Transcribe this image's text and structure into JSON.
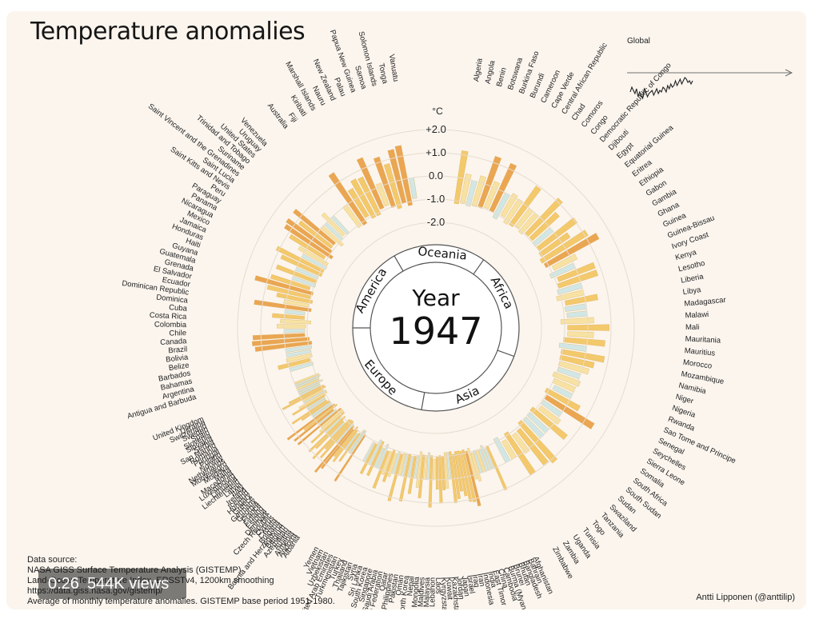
{
  "title": "Temperature anomalies",
  "video": {
    "time": "0:26",
    "views": "544K views"
  },
  "source": {
    "label": "Data source:",
    "lines": [
      "NASA GISS Surface Temperature Analysis (GISTEMP)",
      "Land-Ocean Temperature Index, ERSSTv4, 1200km smoothing",
      "https://data.giss.nasa.gov/gistemp/",
      "Average of monthly temperature anomalies. GISTEMP base period 1951-1980."
    ]
  },
  "credit": "Antti Lipponen (@anttilip)",
  "colors": {
    "background": "#fbf5ee",
    "warm": "#f2c45a",
    "cool": "#c8e6ea",
    "hot": "#e89a3c"
  },
  "chart_data": {
    "type": "bar",
    "layout": "radial",
    "year_label": "Year",
    "year": "1947",
    "unit": "°C",
    "scale_ticks": [
      "+2.0",
      "+1.0",
      "0.0",
      "-1.0",
      "-2.0"
    ],
    "scale_values": [
      2.0,
      1.0,
      0.0,
      -1.0,
      -2.0
    ],
    "range": [
      -2.0,
      2.0
    ],
    "regions": [
      {
        "name": "Africa",
        "countries": [
          "Algeria",
          "Angola",
          "Benin",
          "Botswana",
          "Burkina Faso",
          "Burundi",
          "Cameroon",
          "Cape Verde",
          "Central African Republic",
          "Chad",
          "Comoros",
          "Congo",
          "Democratic Republic of Congo",
          "Djibouti",
          "Egypt",
          "Equatorial Guinea",
          "Eritrea",
          "Ethiopia",
          "Gabon",
          "Gambia",
          "Ghana",
          "Guinea",
          "Guinea-Bissau",
          "Ivory Coast",
          "Kenya",
          "Lesotho",
          "Liberia",
          "Libya",
          "Madagascar",
          "Malawi",
          "Mali",
          "Mauritania",
          "Mauritius",
          "Morocco",
          "Mozambique",
          "Namibia",
          "Niger",
          "Nigeria",
          "Rwanda",
          "Sao Tome and Principe",
          "Senegal",
          "Seychelles",
          "Sierra Leone",
          "Somalia",
          "South Africa",
          "South Sudan",
          "Sudan",
          "Swaziland",
          "Tanzania",
          "Togo",
          "Tunisia",
          "Uganda",
          "Zambia",
          "Zimbabwe"
        ]
      },
      {
        "name": "Asia",
        "countries": [
          "Afghanistan",
          "Bahrain",
          "Bangladesh",
          "Bhutan",
          "Brunei",
          "Burma (Myanmar)",
          "Cambodia",
          "China",
          "East Timor",
          "India",
          "Indonesia",
          "Iran",
          "Iraq",
          "Israel",
          "Japan",
          "Jordan",
          "Kazakhstan",
          "Kuwait",
          "Kyrgyzstan",
          "Laos",
          "Lebanon",
          "Malaysia",
          "Maldives",
          "Mongolia",
          "Nepal",
          "North Korea",
          "Oman",
          "Pakistan",
          "Philippines",
          "Qatar",
          "Russian Federation",
          "Saudi Arabia",
          "Singapore",
          "South Korea",
          "Sri Lanka",
          "Syria",
          "Tajikistan",
          "Thailand",
          "Turkey",
          "Turkmenistan",
          "United Arab Emirates",
          "Uzbekistan",
          "Vietnam",
          "Yemen"
        ]
      },
      {
        "name": "Europe",
        "countries": [
          "Albania",
          "Andorra",
          "Armenia",
          "Austria",
          "Azerbaijan",
          "Belgium",
          "Bosnia and Herzegovina",
          "Bulgaria",
          "Croatia",
          "Cyprus",
          "Czech Republic",
          "Denmark",
          "Estonia",
          "Finland",
          "France",
          "Georgia",
          "Germany",
          "Greece",
          "Hungary",
          "Iceland",
          "Ireland",
          "Italy",
          "Latvia",
          "Liechtenstein",
          "Lithuania",
          "Luxembourg",
          "Macedonia",
          "Malta",
          "Moldova",
          "Montenegro",
          "Netherlands",
          "Norway",
          "Poland",
          "Portugal",
          "Romania",
          "San Marino",
          "Serbia",
          "Slovakia",
          "Slovenia",
          "Spain",
          "Sweden",
          "Switzerland",
          "Ukraine",
          "United Kingdom"
        ]
      },
      {
        "name": "America",
        "countries": [
          "Antigua and Barbuda",
          "Argentina",
          "Bahamas",
          "Barbados",
          "Belize",
          "Bolivia",
          "Brazil",
          "Canada",
          "Chile",
          "Colombia",
          "Costa Rica",
          "Cuba",
          "Dominica",
          "Dominican Republic",
          "Ecuador",
          "El Salvador",
          "Grenada",
          "Guatemala",
          "Guyana",
          "Haiti",
          "Honduras",
          "Jamaica",
          "Mexico",
          "Nicaragua",
          "Panama",
          "Paraguay",
          "Peru",
          "Saint Kitts and Nevis",
          "Saint Lucia",
          "Saint Vincent and the Grenadines",
          "Suriname",
          "Trinidad and Tobago",
          "United States",
          "Uruguay",
          "Venezuela"
        ]
      },
      {
        "name": "Oceania",
        "countries": [
          "Australia",
          "Fiji",
          "Kiribati",
          "Marshall Islands",
          "Nauru",
          "New Zealand",
          "Palau",
          "Papua New Guinea",
          "Samoa",
          "Solomon Islands",
          "Tonga",
          "Vanuatu"
        ]
      }
    ],
    "inset": {
      "title": "Global",
      "type": "line",
      "values": [
        -0.3,
        -0.15,
        -0.25,
        -0.35,
        -0.2,
        -0.45,
        -0.3,
        -0.4,
        -0.5,
        -0.2,
        -0.3,
        -0.45,
        -0.35,
        -0.3,
        -0.25,
        -0.4,
        -0.3,
        -0.2,
        -0.35,
        -0.25,
        -0.3,
        -0.15,
        -0.2,
        -0.3,
        -0.1,
        -0.2,
        -0.05,
        -0.15,
        -0.1,
        0.05,
        -0.1,
        0.0,
        0.1,
        -0.05,
        0.05,
        0.15,
        0.1,
        0.0,
        0.05,
        -0.05,
        0.05
      ]
    }
  }
}
